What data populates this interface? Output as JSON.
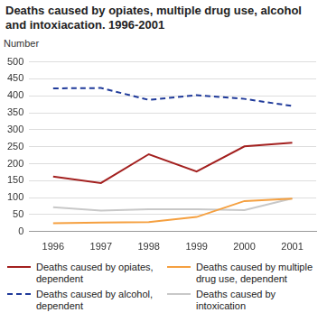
{
  "chart_data": {
    "type": "line",
    "title": "Deaths caused by opiates, multiple drug use, alcohol and intoxiacation. 1996-2001",
    "y_label": "Number",
    "categories": [
      "1996",
      "1997",
      "1998",
      "1999",
      "2000",
      "2001"
    ],
    "series": [
      {
        "name": "Deaths caused by opiates, dependent",
        "color": "#a3201f",
        "line_style": "solid",
        "values": [
          162,
          143,
          228,
          177,
          251,
          262
        ]
      },
      {
        "name": "Deaths caused by multiple drug use, dependent",
        "color": "#f5a040",
        "line_style": "solid",
        "values": [
          25,
          27,
          28,
          43,
          90,
          97
        ]
      },
      {
        "name": "Deaths caused by alcohol, dependent",
        "color": "#1f3a9a",
        "line_style": "dashed",
        "values": [
          422,
          423,
          388,
          402,
          391,
          370
        ]
      },
      {
        "name": "Deaths caused by intoxication",
        "color": "#c8c8c8",
        "line_style": "solid",
        "values": [
          72,
          62,
          66,
          66,
          63,
          98
        ]
      }
    ],
    "ylim": [
      0,
      500
    ],
    "yticks": [
      0,
      50,
      100,
      150,
      200,
      250,
      300,
      350,
      400,
      450,
      500
    ],
    "grid": true,
    "legend": "bottom"
  }
}
